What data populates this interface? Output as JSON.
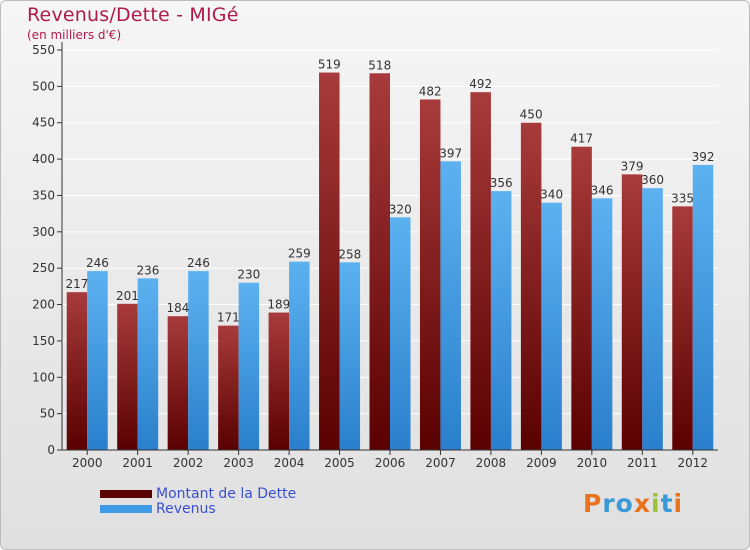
{
  "chart_data": {
    "type": "bar",
    "title": "Revenus/Dette - MIGé",
    "subtitle": "(en milliers d'€)",
    "categories": [
      "2000",
      "2001",
      "2002",
      "2003",
      "2004",
      "2005",
      "2006",
      "2007",
      "2008",
      "2009",
      "2010",
      "2011",
      "2012"
    ],
    "series": [
      {
        "name": "Montant de la Dette",
        "color": "#8b1a1a",
        "values": [
          217,
          201,
          184,
          171,
          189,
          519,
          518,
          482,
          492,
          450,
          417,
          379,
          335
        ]
      },
      {
        "name": "Revenus",
        "color": "#3f9be6",
        "values": [
          246,
          236,
          246,
          230,
          259,
          258,
          320,
          397,
          356,
          340,
          346,
          360,
          392
        ]
      }
    ],
    "ylim": [
      0,
      550
    ],
    "yticks": [
      0,
      50,
      100,
      150,
      200,
      250,
      300,
      350,
      400,
      450,
      500,
      550
    ],
    "grid": true,
    "legend_position": "bottom-left"
  },
  "logo": {
    "text": "Proxiti",
    "colors": [
      "#e8731c",
      "#3a9ad9",
      "#3a9ad9",
      "#e8731c",
      "#9bc43c",
      "#3a9ad9",
      "#e8731c"
    ]
  }
}
